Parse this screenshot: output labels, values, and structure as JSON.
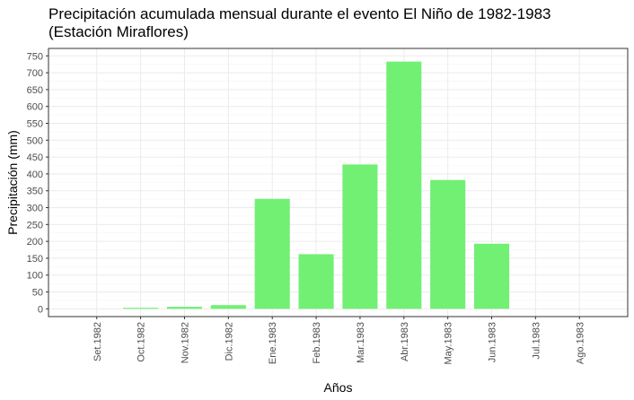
{
  "chart_data": {
    "type": "bar",
    "title_line1": "Precipitación acumulada mensual durante el evento El Niño de 1982-1983",
    "title_line2": "(Estación Miraflores)",
    "xlabel": "Años",
    "ylabel": "Precipitación (mm)",
    "categories": [
      "Set.1982",
      "Oct.1982",
      "Nov.1982",
      "Dic.1982",
      "Ene.1983",
      "Feb.1983",
      "Mar.1983",
      "Abr.1983",
      "May.1983",
      "Jun.1983",
      "Jul.1983",
      "Ago.1983"
    ],
    "values": [
      0,
      3,
      6,
      11,
      326,
      162,
      428,
      733,
      382,
      193,
      0,
      0
    ],
    "ylim": [
      -23,
      772
    ],
    "yticks": [
      0,
      50,
      100,
      150,
      200,
      250,
      300,
      350,
      400,
      450,
      500,
      550,
      600,
      650,
      700,
      750
    ],
    "grid": true,
    "bar_color": "#71f074"
  }
}
